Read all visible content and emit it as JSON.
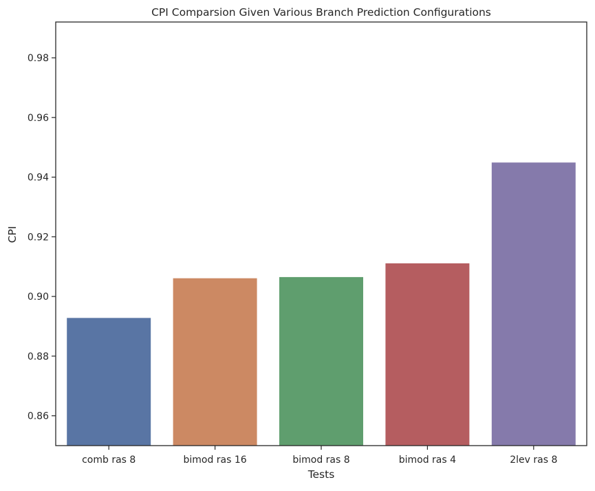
{
  "chart_data": {
    "type": "bar",
    "title": "CPI Comparsion Given Various Branch Prediction Configurations",
    "xlabel": "Tests",
    "ylabel": "CPI",
    "categories": [
      "comb ras 8",
      "bimod ras 16",
      "bimod ras 8",
      "bimod ras 4",
      "2lev ras 8"
    ],
    "values": [
      0.8928,
      0.9061,
      0.9065,
      0.9111,
      0.9449
    ],
    "ylim": [
      0.85,
      0.992
    ],
    "yticks": [
      0.86,
      0.88,
      0.9,
      0.92,
      0.94,
      0.96,
      0.98
    ],
    "ytick_labels": [
      "0.86",
      "0.88",
      "0.90",
      "0.92",
      "0.94",
      "0.96",
      "0.98"
    ],
    "colors": [
      "#5975a4",
      "#cc8963",
      "#5f9e6e",
      "#b55d60",
      "#857aab"
    ],
    "grid": false,
    "legend": "none"
  }
}
